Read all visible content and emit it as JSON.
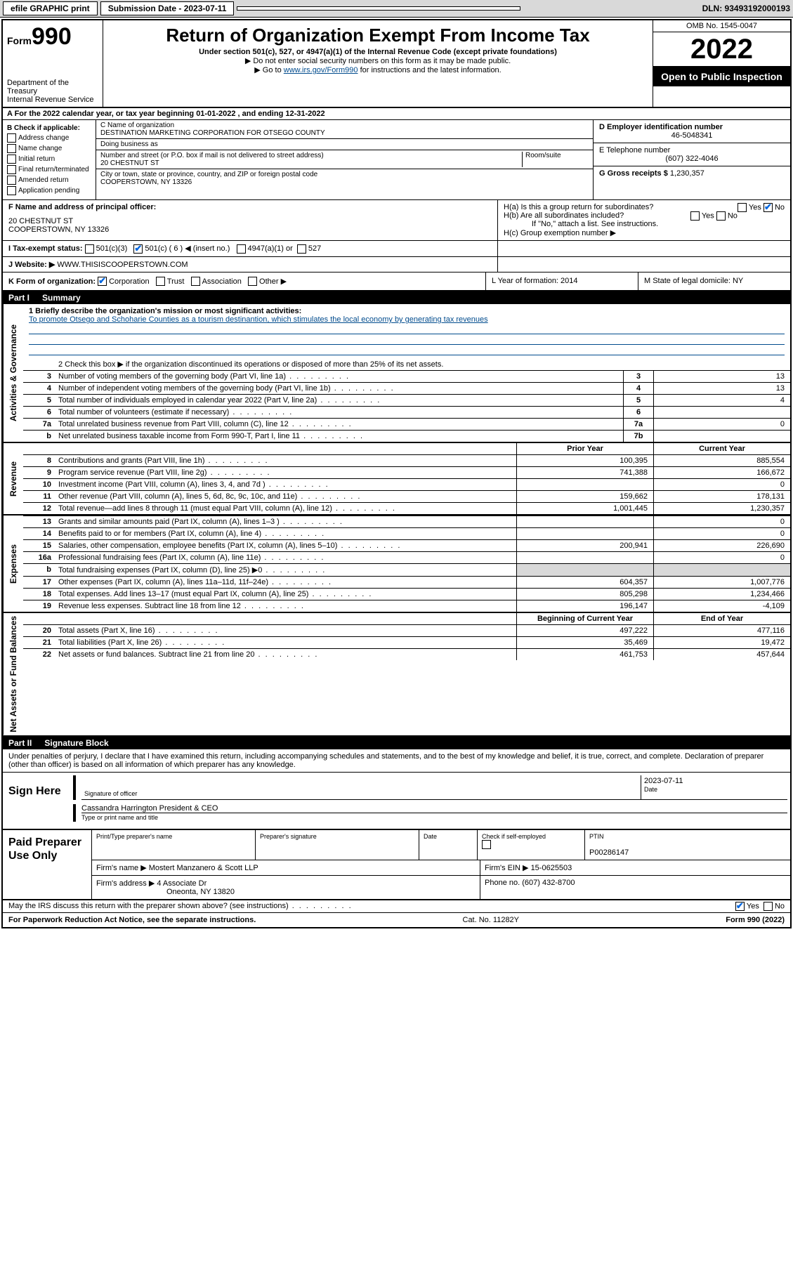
{
  "topbar": {
    "efile": "efile GRAPHIC print",
    "submission_label": "Submission Date - 2023-07-11",
    "dln": "DLN: 93493192000193"
  },
  "header": {
    "form_prefix": "Form",
    "form_num": "990",
    "dept": "Department of the Treasury",
    "irs": "Internal Revenue Service",
    "title": "Return of Organization Exempt From Income Tax",
    "sub1": "Under section 501(c), 527, or 4947(a)(1) of the Internal Revenue Code (except private foundations)",
    "sub2": "▶ Do not enter social security numbers on this form as it may be made public.",
    "sub3_pre": "▶ Go to ",
    "sub3_link": "www.irs.gov/Form990",
    "sub3_post": " for instructions and the latest information.",
    "omb": "OMB No. 1545-0047",
    "year": "2022",
    "open": "Open to Public Inspection"
  },
  "rowA": "A For the 2022 calendar year, or tax year beginning 01-01-2022   , and ending 12-31-2022",
  "colB": {
    "title": "B Check if applicable:",
    "opts": [
      "Address change",
      "Name change",
      "Initial return",
      "Final return/terminated",
      "Amended return",
      "Application pending"
    ]
  },
  "colC": {
    "name_lbl": "C Name of organization",
    "name": "DESTINATION MARKETING CORPORATION FOR OTSEGO COUNTY",
    "dba_lbl": "Doing business as",
    "addr_lbl": "Number and street (or P.O. box if mail is not delivered to street address)",
    "room_lbl": "Room/suite",
    "addr": "20 CHESTNUT ST",
    "city_lbl": "City or town, state or province, country, and ZIP or foreign postal code",
    "city": "COOPERSTOWN, NY  13326"
  },
  "colD": {
    "ein_lbl": "D Employer identification number",
    "ein": "46-5048341",
    "tel_lbl": "E Telephone number",
    "tel": "(607) 322-4046",
    "gross_lbl": "G Gross receipts $",
    "gross": "1,230,357"
  },
  "rowF": {
    "left_lbl": "F Name and address of principal officer:",
    "left_addr1": "20 CHESTNUT ST",
    "left_addr2": "COOPERSTOWN, NY  13326",
    "ha": "H(a)  Is this a group return for subordinates?",
    "hb": "H(b)  Are all subordinates included?",
    "hb_note": "If \"No,\" attach a list. See instructions.",
    "hc": "H(c)  Group exemption number ▶"
  },
  "rowI": {
    "lbl": "I   Tax-exempt status:",
    "opts": [
      "501(c)(3)",
      "501(c) ( 6 ) ◀ (insert no.)",
      "4947(a)(1) or",
      "527"
    ]
  },
  "rowJ": {
    "lbl": "J   Website: ▶",
    "val": "WWW.THISISCOOPERSTOWN.COM"
  },
  "rowK": {
    "lbl": "K Form of organization:",
    "opts": [
      "Corporation",
      "Trust",
      "Association",
      "Other ▶"
    ],
    "L": "L Year of formation: 2014",
    "M": "M State of legal domicile: NY"
  },
  "partI": {
    "hdr_part": "Part I",
    "hdr_title": "Summary",
    "brief_lbl": "1   Briefly describe the organization's mission or most significant activities:",
    "brief": "To promote Otsego and Schoharie Counties as a tourism destinantion, which stimulates the local economy by generating tax revenues",
    "line2": "2    Check this box ▶       if the organization discontinued its operations or disposed of more than 25% of its net assets.",
    "sections": {
      "gov": "Activities & Governance",
      "rev": "Revenue",
      "exp": "Expenses",
      "net": "Net Assets or Fund Balances"
    },
    "col_hdr_prior": "Prior Year",
    "col_hdr_curr": "Current Year",
    "col_hdr_begin": "Beginning of Current Year",
    "col_hdr_end": "End of Year",
    "rows_gov": [
      {
        "n": "3",
        "d": "Number of voting members of the governing body (Part VI, line 1a)",
        "box": "3",
        "v": "13"
      },
      {
        "n": "4",
        "d": "Number of independent voting members of the governing body (Part VI, line 1b)",
        "box": "4",
        "v": "13"
      },
      {
        "n": "5",
        "d": "Total number of individuals employed in calendar year 2022 (Part V, line 2a)",
        "box": "5",
        "v": "4"
      },
      {
        "n": "6",
        "d": "Total number of volunteers (estimate if necessary)",
        "box": "6",
        "v": ""
      },
      {
        "n": "7a",
        "d": "Total unrelated business revenue from Part VIII, column (C), line 12",
        "box": "7a",
        "v": "0"
      },
      {
        "n": "b",
        "d": "Net unrelated business taxable income from Form 990-T, Part I, line 11",
        "box": "7b",
        "v": ""
      }
    ],
    "rows_rev": [
      {
        "n": "8",
        "d": "Contributions and grants (Part VIII, line 1h)",
        "p": "100,395",
        "c": "885,554"
      },
      {
        "n": "9",
        "d": "Program service revenue (Part VIII, line 2g)",
        "p": "741,388",
        "c": "166,672"
      },
      {
        "n": "10",
        "d": "Investment income (Part VIII, column (A), lines 3, 4, and 7d )",
        "p": "",
        "c": "0"
      },
      {
        "n": "11",
        "d": "Other revenue (Part VIII, column (A), lines 5, 6d, 8c, 9c, 10c, and 11e)",
        "p": "159,662",
        "c": "178,131"
      },
      {
        "n": "12",
        "d": "Total revenue—add lines 8 through 11 (must equal Part VIII, column (A), line 12)",
        "p": "1,001,445",
        "c": "1,230,357"
      }
    ],
    "rows_exp": [
      {
        "n": "13",
        "d": "Grants and similar amounts paid (Part IX, column (A), lines 1–3 )",
        "p": "",
        "c": "0"
      },
      {
        "n": "14",
        "d": "Benefits paid to or for members (Part IX, column (A), line 4)",
        "p": "",
        "c": "0"
      },
      {
        "n": "15",
        "d": "Salaries, other compensation, employee benefits (Part IX, column (A), lines 5–10)",
        "p": "200,941",
        "c": "226,690"
      },
      {
        "n": "16a",
        "d": "Professional fundraising fees (Part IX, column (A), line 11e)",
        "p": "",
        "c": "0"
      },
      {
        "n": "b",
        "d": "Total fundraising expenses (Part IX, column (D), line 25) ▶0",
        "p": "—",
        "c": "—"
      },
      {
        "n": "17",
        "d": "Other expenses (Part IX, column (A), lines 11a–11d, 11f–24e)",
        "p": "604,357",
        "c": "1,007,776"
      },
      {
        "n": "18",
        "d": "Total expenses. Add lines 13–17 (must equal Part IX, column (A), line 25)",
        "p": "805,298",
        "c": "1,234,466"
      },
      {
        "n": "19",
        "d": "Revenue less expenses. Subtract line 18 from line 12",
        "p": "196,147",
        "c": "-4,109"
      }
    ],
    "rows_net": [
      {
        "n": "20",
        "d": "Total assets (Part X, line 16)",
        "p": "497,222",
        "c": "477,116"
      },
      {
        "n": "21",
        "d": "Total liabilities (Part X, line 26)",
        "p": "35,469",
        "c": "19,472"
      },
      {
        "n": "22",
        "d": "Net assets or fund balances. Subtract line 21 from line 20",
        "p": "461,753",
        "c": "457,644"
      }
    ]
  },
  "partII": {
    "hdr_part": "Part II",
    "hdr_title": "Signature Block",
    "decl": "Under penalties of perjury, I declare that I have examined this return, including accompanying schedules and statements, and to the best of my knowledge and belief, it is true, correct, and complete. Declaration of preparer (other than officer) is based on all information of which preparer has any knowledge.",
    "sign_here": "Sign Here",
    "sig_of_officer": "Signature of officer",
    "sig_date": "2023-07-11",
    "date_lbl": "Date",
    "officer_name": "Cassandra Harrington President & CEO",
    "officer_lbl": "Type or print name and title",
    "paid": "Paid Preparer Use Only",
    "prep_name_lbl": "Print/Type preparer's name",
    "prep_sig_lbl": "Preparer's signature",
    "prep_date_lbl": "Date",
    "prep_check": "Check        if self-employed",
    "ptin_lbl": "PTIN",
    "ptin": "P00286147",
    "firm_name_lbl": "Firm's name    ▶",
    "firm_name": "Mostert Manzanero & Scott LLP",
    "firm_ein_lbl": "Firm's EIN ▶",
    "firm_ein": "15-0625503",
    "firm_addr_lbl": "Firm's address ▶",
    "firm_addr1": "4 Associate Dr",
    "firm_addr2": "Oneonta, NY  13820",
    "firm_phone_lbl": "Phone no.",
    "firm_phone": "(607) 432-8700",
    "may_irs": "May the IRS discuss this return with the preparer shown above? (see instructions)"
  },
  "footer": {
    "left": "For Paperwork Reduction Act Notice, see the separate instructions.",
    "mid": "Cat. No. 11282Y",
    "right": "Form 990 (2022)"
  },
  "colors": {
    "link": "#004b8d",
    "check": "#0066e0",
    "topbar_bg": "#d9d9d9"
  }
}
